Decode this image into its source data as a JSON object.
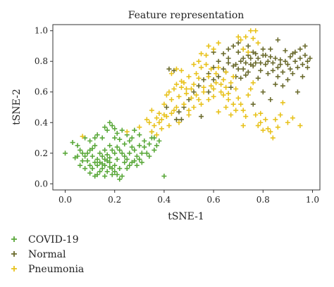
{
  "chart_data": {
    "type": "scatter",
    "title": "Feature representation",
    "xlabel": "tSNE-1",
    "ylabel": "tSNE-2",
    "xlim": [
      -0.05,
      1.03
    ],
    "ylim": [
      -0.04,
      1.04
    ],
    "xticks": [
      0.0,
      0.2,
      0.4,
      0.6,
      0.8,
      1.0
    ],
    "yticks": [
      0.0,
      0.2,
      0.4,
      0.6,
      0.8,
      1.0
    ],
    "xtick_labels": [
      "0.0",
      "0.2",
      "0.4",
      "0.6",
      "0.8",
      "1.0"
    ],
    "ytick_labels": [
      "0.0",
      "0.2",
      "0.4",
      "0.6",
      "0.8",
      "1.0"
    ],
    "marker": "plus",
    "grid": false,
    "legend_position": "below",
    "series": [
      {
        "name": "COVID-19",
        "color": "#5aa83a",
        "points": [
          [
            0.0,
            0.2
          ],
          [
            0.03,
            0.27
          ],
          [
            0.05,
            0.25
          ],
          [
            0.06,
            0.22
          ],
          [
            0.07,
            0.15
          ],
          [
            0.04,
            0.17
          ],
          [
            0.08,
            0.1
          ],
          [
            0.1,
            0.07
          ],
          [
            0.12,
            0.05
          ],
          [
            0.09,
            0.2
          ],
          [
            0.11,
            0.18
          ],
          [
            0.13,
            0.12
          ],
          [
            0.14,
            0.14
          ],
          [
            0.15,
            0.13
          ],
          [
            0.16,
            0.12
          ],
          [
            0.17,
            0.15
          ],
          [
            0.18,
            0.11
          ],
          [
            0.19,
            0.1
          ],
          [
            0.2,
            0.08
          ],
          [
            0.22,
            0.03
          ],
          [
            0.23,
            0.05
          ],
          [
            0.25,
            0.1
          ],
          [
            0.21,
            0.16
          ],
          [
            0.24,
            0.18
          ],
          [
            0.26,
            0.2
          ],
          [
            0.28,
            0.22
          ],
          [
            0.3,
            0.25
          ],
          [
            0.32,
            0.28
          ],
          [
            0.35,
            0.3
          ],
          [
            0.27,
            0.3
          ],
          [
            0.29,
            0.12
          ],
          [
            0.31,
            0.14
          ],
          [
            0.33,
            0.2
          ],
          [
            0.34,
            0.18
          ],
          [
            0.36,
            0.22
          ],
          [
            0.37,
            0.25
          ],
          [
            0.38,
            0.28
          ],
          [
            0.4,
            0.05
          ],
          [
            0.15,
            0.3
          ],
          [
            0.17,
            0.35
          ],
          [
            0.19,
            0.38
          ],
          [
            0.21,
            0.33
          ],
          [
            0.23,
            0.35
          ],
          [
            0.2,
            0.3
          ],
          [
            0.18,
            0.25
          ],
          [
            0.16,
            0.22
          ],
          [
            0.14,
            0.2
          ],
          [
            0.12,
            0.25
          ],
          [
            0.1,
            0.28
          ],
          [
            0.08,
            0.3
          ],
          [
            0.13,
            0.32
          ],
          [
            0.11,
            0.23
          ],
          [
            0.09,
            0.15
          ],
          [
            0.07,
            0.2
          ],
          [
            0.06,
            0.12
          ],
          [
            0.05,
            0.18
          ],
          [
            0.14,
            0.08
          ],
          [
            0.16,
            0.05
          ],
          [
            0.18,
            0.17
          ],
          [
            0.2,
            0.2
          ],
          [
            0.22,
            0.22
          ],
          [
            0.24,
            0.26
          ],
          [
            0.26,
            0.28
          ],
          [
            0.25,
            0.32
          ],
          [
            0.27,
            0.24
          ],
          [
            0.29,
            0.18
          ],
          [
            0.3,
            0.16
          ],
          [
            0.31,
            0.2
          ],
          [
            0.28,
            0.15
          ],
          [
            0.26,
            0.12
          ],
          [
            0.24,
            0.14
          ],
          [
            0.22,
            0.1
          ],
          [
            0.2,
            0.12
          ],
          [
            0.18,
            0.14
          ],
          [
            0.16,
            0.16
          ],
          [
            0.15,
            0.1
          ],
          [
            0.13,
            0.16
          ],
          [
            0.12,
            0.14
          ],
          [
            0.1,
            0.12
          ],
          [
            0.17,
            0.19
          ],
          [
            0.19,
            0.22
          ],
          [
            0.21,
            0.24
          ],
          [
            0.23,
            0.2
          ],
          [
            0.25,
            0.16
          ],
          [
            0.27,
            0.14
          ],
          [
            0.22,
            0.29
          ],
          [
            0.2,
            0.36
          ],
          [
            0.18,
            0.4
          ],
          [
            0.16,
            0.37
          ],
          [
            0.12,
            0.3
          ],
          [
            0.1,
            0.22
          ],
          [
            0.08,
            0.18
          ],
          [
            0.11,
            0.1
          ],
          [
            0.13,
            0.06
          ],
          [
            0.15,
            0.18
          ],
          [
            0.17,
            0.08
          ],
          [
            0.19,
            0.06
          ],
          [
            0.21,
            0.06
          ],
          [
            0.32,
            0.24
          ],
          [
            0.34,
            0.26
          ],
          [
            0.36,
            0.3
          ],
          [
            0.35,
            0.34
          ],
          [
            0.3,
            0.32
          ],
          [
            0.28,
            0.35
          ]
        ]
      },
      {
        "name": "Normal",
        "color": "#6b6b2e",
        "points": [
          [
            0.42,
            0.75
          ],
          [
            0.44,
            0.74
          ],
          [
            0.41,
            0.5
          ],
          [
            0.47,
            0.42
          ],
          [
            0.55,
            0.44
          ],
          [
            0.58,
            0.6
          ],
          [
            0.6,
            0.68
          ],
          [
            0.62,
            0.7
          ],
          [
            0.64,
            0.85
          ],
          [
            0.65,
            0.73
          ],
          [
            0.66,
            0.82
          ],
          [
            0.67,
            0.63
          ],
          [
            0.68,
            0.77
          ],
          [
            0.69,
            0.7
          ],
          [
            0.7,
            0.86
          ],
          [
            0.71,
            0.8
          ],
          [
            0.72,
            0.75
          ],
          [
            0.73,
            0.71
          ],
          [
            0.74,
            0.9
          ],
          [
            0.75,
            0.82
          ],
          [
            0.76,
            0.77
          ],
          [
            0.77,
            0.85
          ],
          [
            0.78,
            0.69
          ],
          [
            0.79,
            0.74
          ],
          [
            0.8,
            0.88
          ],
          [
            0.81,
            0.78
          ],
          [
            0.82,
            0.72
          ],
          [
            0.83,
            0.83
          ],
          [
            0.84,
            0.79
          ],
          [
            0.85,
            0.65
          ],
          [
            0.86,
            0.76
          ],
          [
            0.87,
            0.81
          ],
          [
            0.88,
            0.73
          ],
          [
            0.89,
            0.87
          ],
          [
            0.9,
            0.78
          ],
          [
            0.91,
            0.75
          ],
          [
            0.92,
            0.85
          ],
          [
            0.93,
            0.8
          ],
          [
            0.94,
            0.76
          ],
          [
            0.95,
            0.82
          ],
          [
            0.96,
            0.78
          ],
          [
            0.97,
            0.84
          ],
          [
            0.98,
            0.8
          ],
          [
            0.99,
            0.82
          ],
          [
            0.98,
            0.76
          ],
          [
            0.96,
            0.7
          ],
          [
            0.94,
            0.6
          ],
          [
            0.92,
            0.72
          ],
          [
            0.9,
            0.68
          ],
          [
            0.88,
            0.64
          ],
          [
            0.86,
            0.7
          ],
          [
            0.84,
            0.74
          ],
          [
            0.82,
            0.8
          ],
          [
            0.8,
            0.84
          ],
          [
            0.78,
            0.82
          ],
          [
            0.76,
            0.86
          ],
          [
            0.74,
            0.84
          ],
          [
            0.72,
            0.88
          ],
          [
            0.7,
            0.92
          ],
          [
            0.68,
            0.9
          ],
          [
            0.66,
            0.88
          ],
          [
            0.64,
            0.75
          ],
          [
            0.62,
            0.8
          ],
          [
            0.6,
            0.76
          ],
          [
            0.58,
            0.72
          ],
          [
            0.56,
            0.68
          ],
          [
            0.54,
            0.64
          ],
          [
            0.52,
            0.6
          ],
          [
            0.5,
            0.55
          ],
          [
            0.48,
            0.5
          ],
          [
            0.46,
            0.47
          ],
          [
            0.45,
            0.42
          ],
          [
            0.6,
            0.86
          ],
          [
            0.66,
            0.79
          ],
          [
            0.7,
            0.75
          ],
          [
            0.73,
            0.79
          ],
          [
            0.77,
            0.79
          ],
          [
            0.79,
            0.79
          ],
          [
            0.81,
            0.84
          ],
          [
            0.83,
            0.88
          ],
          [
            0.85,
            0.82
          ],
          [
            0.87,
            0.78
          ],
          [
            0.89,
            0.8
          ],
          [
            0.91,
            0.83
          ],
          [
            0.93,
            0.86
          ],
          [
            0.95,
            0.88
          ],
          [
            0.97,
            0.9
          ],
          [
            0.86,
            0.94
          ],
          [
            0.74,
            0.73
          ],
          [
            0.71,
            0.69
          ],
          [
            0.76,
            0.52
          ],
          [
            0.8,
            0.6
          ],
          [
            0.83,
            0.55
          ],
          [
            0.69,
            0.78
          ],
          [
            0.72,
            0.82
          ],
          [
            0.75,
            0.78
          ]
        ]
      },
      {
        "name": "Pneumonia",
        "color": "#e8c21c",
        "points": [
          [
            0.07,
            0.31
          ],
          [
            0.25,
            0.34
          ],
          [
            0.3,
            0.37
          ],
          [
            0.33,
            0.42
          ],
          [
            0.34,
            0.4
          ],
          [
            0.35,
            0.48
          ],
          [
            0.36,
            0.38
          ],
          [
            0.37,
            0.43
          ],
          [
            0.38,
            0.46
          ],
          [
            0.39,
            0.42
          ],
          [
            0.4,
            0.52
          ],
          [
            0.41,
            0.58
          ],
          [
            0.42,
            0.6
          ],
          [
            0.43,
            0.55
          ],
          [
            0.44,
            0.62
          ],
          [
            0.45,
            0.5
          ],
          [
            0.46,
            0.57
          ],
          [
            0.47,
            0.63
          ],
          [
            0.48,
            0.66
          ],
          [
            0.49,
            0.59
          ],
          [
            0.5,
            0.7
          ],
          [
            0.51,
            0.62
          ],
          [
            0.52,
            0.65
          ],
          [
            0.53,
            0.72
          ],
          [
            0.54,
            0.69
          ],
          [
            0.55,
            0.76
          ],
          [
            0.56,
            0.63
          ],
          [
            0.57,
            0.78
          ],
          [
            0.58,
            0.7
          ],
          [
            0.59,
            0.75
          ],
          [
            0.6,
            0.62
          ],
          [
            0.61,
            0.72
          ],
          [
            0.62,
            0.76
          ],
          [
            0.63,
            0.65
          ],
          [
            0.64,
            0.68
          ],
          [
            0.65,
            0.73
          ],
          [
            0.66,
            0.59
          ],
          [
            0.67,
            0.66
          ],
          [
            0.68,
            0.7
          ],
          [
            0.69,
            0.62
          ],
          [
            0.7,
            0.56
          ],
          [
            0.71,
            0.52
          ],
          [
            0.72,
            0.48
          ],
          [
            0.73,
            0.44
          ],
          [
            0.74,
            0.58
          ],
          [
            0.75,
            0.62
          ],
          [
            0.76,
            0.66
          ],
          [
            0.77,
            0.45
          ],
          [
            0.78,
            0.38
          ],
          [
            0.79,
            0.46
          ],
          [
            0.8,
            0.35
          ],
          [
            0.81,
            0.42
          ],
          [
            0.82,
            0.36
          ],
          [
            0.83,
            0.34
          ],
          [
            0.85,
            0.42
          ],
          [
            0.87,
            0.45
          ],
          [
            0.88,
            0.53
          ],
          [
            0.9,
            0.4
          ],
          [
            0.92,
            0.43
          ],
          [
            0.95,
            0.38
          ],
          [
            0.7,
            0.96
          ],
          [
            0.71,
            0.94
          ],
          [
            0.73,
            0.96
          ],
          [
            0.75,
            1.0
          ],
          [
            0.77,
            1.0
          ],
          [
            0.76,
            0.95
          ],
          [
            0.78,
            0.92
          ],
          [
            0.72,
            0.88
          ],
          [
            0.74,
            0.86
          ],
          [
            0.58,
            0.9
          ],
          [
            0.6,
            0.88
          ],
          [
            0.62,
            0.92
          ],
          [
            0.55,
            0.85
          ],
          [
            0.57,
            0.84
          ],
          [
            0.43,
            0.72
          ],
          [
            0.45,
            0.75
          ],
          [
            0.47,
            0.74
          ],
          [
            0.52,
            0.78
          ],
          [
            0.54,
            0.8
          ],
          [
            0.48,
            0.52
          ],
          [
            0.44,
            0.48
          ],
          [
            0.4,
            0.45
          ],
          [
            0.38,
            0.4
          ],
          [
            0.42,
            0.38
          ],
          [
            0.46,
            0.4
          ],
          [
            0.5,
            0.45
          ],
          [
            0.52,
            0.5
          ],
          [
            0.55,
            0.52
          ],
          [
            0.58,
            0.55
          ],
          [
            0.6,
            0.57
          ],
          [
            0.63,
            0.6
          ],
          [
            0.65,
            0.63
          ],
          [
            0.45,
            0.65
          ],
          [
            0.47,
            0.67
          ],
          [
            0.49,
            0.62
          ],
          [
            0.51,
            0.56
          ],
          [
            0.53,
            0.58
          ],
          [
            0.56,
            0.6
          ],
          [
            0.59,
            0.64
          ],
          [
            0.61,
            0.66
          ],
          [
            0.64,
            0.58
          ],
          [
            0.66,
            0.55
          ],
          [
            0.68,
            0.52
          ],
          [
            0.35,
            0.34
          ],
          [
            0.37,
            0.32
          ],
          [
            0.39,
            0.36
          ],
          [
            0.41,
            0.44
          ],
          [
            0.43,
            0.46
          ],
          [
            0.62,
            0.47
          ],
          [
            0.65,
            0.5
          ],
          [
            0.67,
            0.45
          ],
          [
            0.69,
            0.48
          ],
          [
            0.84,
            0.3
          ],
          [
            0.86,
            0.37
          ],
          [
            0.79,
            0.4
          ],
          [
            0.72,
            0.38
          ],
          [
            0.5,
            0.48
          ],
          [
            0.54,
            0.55
          ]
        ]
      }
    ]
  }
}
